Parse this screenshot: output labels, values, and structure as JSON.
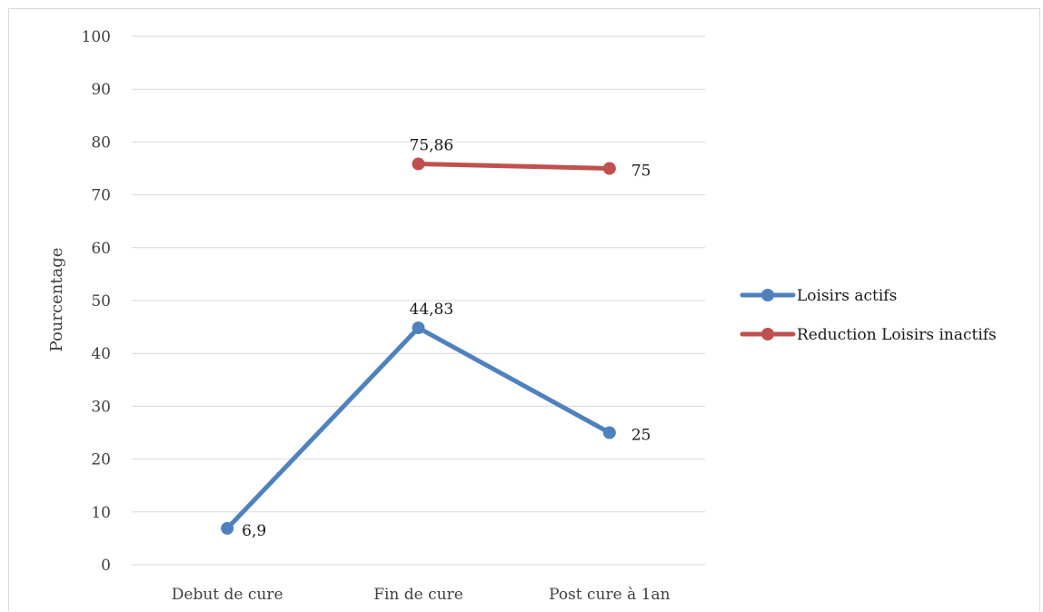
{
  "chart_data": {
    "type": "line",
    "categories": [
      "Debut de cure",
      "Fin de cure",
      "Post cure à 1an"
    ],
    "ylabel": "Pourcentage",
    "xlabel": "",
    "title": "",
    "ylim": [
      0,
      100
    ],
    "yticks": [
      0,
      10,
      20,
      30,
      40,
      50,
      60,
      70,
      80,
      90,
      100
    ],
    "grid": true,
    "legend_position": "right",
    "series": [
      {
        "name": "Loisirs actifs",
        "color": "#4f81bd",
        "values": [
          6.9,
          44.83,
          25
        ],
        "labels": [
          "6,9",
          "44,83",
          "25"
        ]
      },
      {
        "name": "Reduction Loisirs inactifs",
        "color": "#c0504d",
        "values": [
          null,
          75.86,
          75
        ],
        "labels": [
          null,
          "75,86",
          "75"
        ]
      }
    ]
  }
}
